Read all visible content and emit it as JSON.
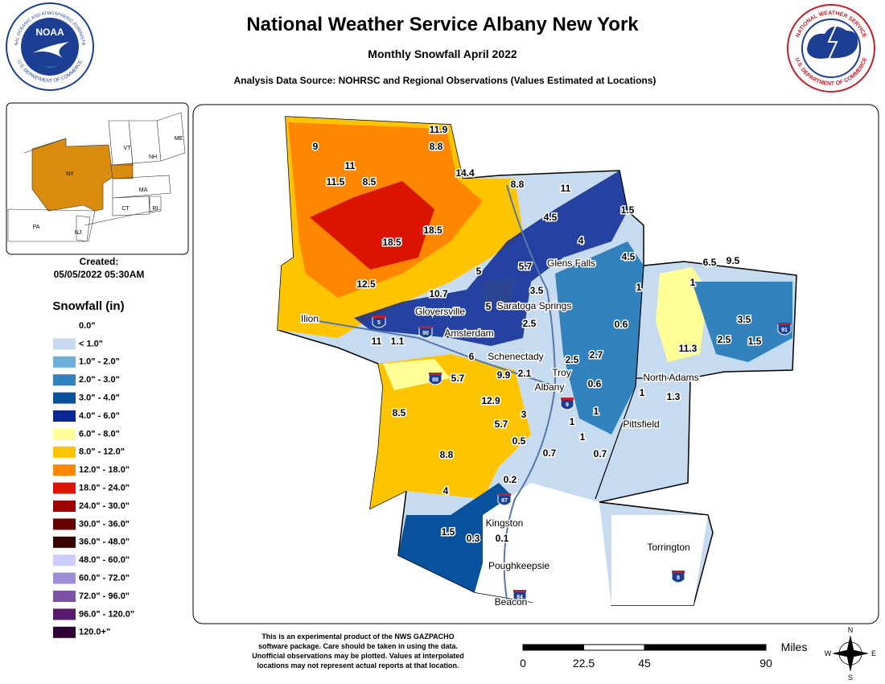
{
  "header": {
    "title": "National Weather Service Albany New York",
    "subtitle": "Monthly Snowfall April 2022",
    "source": "Analysis Data Source: NOHRSC and Regional Observations (Values Estimated at Locations)"
  },
  "logos": {
    "noaa": "NOAA",
    "noaa_top": "NATIONAL OCEANIC AND ATMOSPHERIC ADMINISTRATION",
    "noaa_bottom": "U.S. DEPARTMENT OF COMMERCE",
    "nws_top": "NATIONAL WEATHER SERVICE",
    "nws_bottom": "U.S. DEPARTMENT OF COMMERCE"
  },
  "inset": {
    "labels": [
      "VT",
      "NH",
      "ME",
      "NY",
      "MA",
      "CT",
      "RI",
      "PA",
      "NJ"
    ]
  },
  "created": {
    "label": "Created:",
    "datetime": "05/05/2022 05:30AM"
  },
  "legend": {
    "title": "Snowfall (in)",
    "items": [
      {
        "label": "0.0\"",
        "color": "#ffffff"
      },
      {
        "label": "< 1.0\"",
        "color": "#c6dbef"
      },
      {
        "label": "1.0\" - 2.0\"",
        "color": "#6baed6"
      },
      {
        "label": "2.0\" - 3.0\"",
        "color": "#3182bd"
      },
      {
        "label": "3.0\" - 4.0\"",
        "color": "#08519c"
      },
      {
        "label": "4.0\" - 6.0\"",
        "color": "#082694"
      },
      {
        "label": "6.0\" - 8.0\"",
        "color": "#ffff96"
      },
      {
        "label": "8.0\" - 12.0\"",
        "color": "#ffc400"
      },
      {
        "label": "12.0\" - 18.0\"",
        "color": "#ff8700"
      },
      {
        "label": "18.0\" - 24.0\"",
        "color": "#db1400"
      },
      {
        "label": "24.0\" - 30.0\"",
        "color": "#9e0000"
      },
      {
        "label": "30.0\" - 36.0\"",
        "color": "#690000"
      },
      {
        "label": "36.0\" - 48.0\"",
        "color": "#360000"
      },
      {
        "label": "48.0\" - 60.0\"",
        "color": "#ccccff"
      },
      {
        "label": "60.0\" - 72.0\"",
        "color": "#9f8cd8"
      },
      {
        "label": "72.0\" - 96.0\"",
        "color": "#7c52a5"
      },
      {
        "label": "96.0\" - 120.0\"",
        "color": "#561c72"
      },
      {
        "label": "120.0+\"",
        "color": "#2e0033"
      }
    ]
  },
  "cities": [
    "Glens Falls",
    "Gloversville",
    "Saratoga Springs",
    "Ilion",
    "Amsterdam",
    "Schenectady",
    "Troy",
    "North Adams",
    "Albany",
    "Pittsfield",
    "Kingston",
    "Torrington",
    "Poughkeepsie",
    "Beacon"
  ],
  "highways": [
    "5",
    "90",
    "88",
    "9",
    "87",
    "8",
    "84",
    "91"
  ],
  "snowfall_values": [
    11.9,
    8.8,
    9,
    11,
    14.4,
    11.5,
    8.5,
    8.8,
    11,
    1.5,
    4.5,
    18.5,
    18.5,
    4,
    4.5,
    5.7,
    5,
    6.5,
    9.5,
    1,
    12.5,
    1,
    3.5,
    10.7,
    5,
    3.5,
    0.6,
    2.5,
    11,
    1.1,
    2.5,
    1.5,
    11.3,
    2.7,
    6,
    2.5,
    9.9,
    2.1,
    0.6,
    5.7,
    1,
    1.3,
    12.9,
    8.5,
    1,
    3,
    5.7,
    1,
    1,
    0.5,
    0.7,
    0.7,
    8.8,
    0.2,
    4,
    1.5,
    0.3,
    0.1
  ],
  "footnote": [
    "This is an experimental product of the NWS GAZPACHO",
    "software package. Care should be taken in using the data.",
    "Unofficial observations may be plotted. Values at interpolated",
    "locations may not represent actual reports at that location."
  ],
  "scale": {
    "unit": "Miles",
    "ticks": [
      0,
      22.5,
      45,
      90
    ]
  },
  "compass": [
    "N",
    "S",
    "W",
    "E"
  ]
}
